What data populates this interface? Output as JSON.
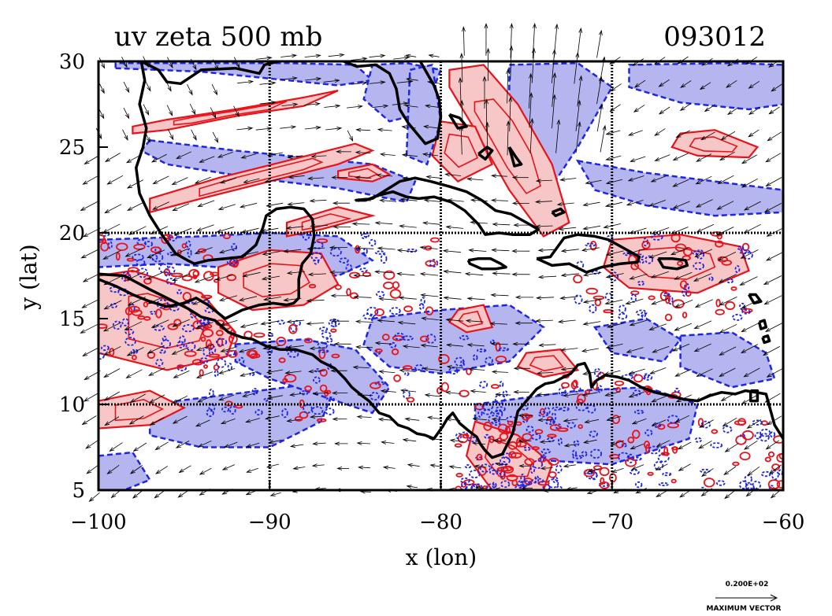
{
  "chart_data": {
    "type": "contour_vector_map",
    "title": "uv zeta 500 mb",
    "timestamp": "093012",
    "xlabel": "x (lon)",
    "ylabel": "y (lat)",
    "xlim": [
      -100,
      -60
    ],
    "ylim": [
      5,
      30
    ],
    "x_ticks": [
      -100,
      -90,
      -80,
      -70,
      -60
    ],
    "x_tick_labels": [
      "−100",
      "−90",
      "−80",
      "−70",
      "−60"
    ],
    "y_ticks": [
      5,
      10,
      15,
      20,
      25,
      30
    ],
    "y_tick_labels": [
      "5",
      "10",
      "15",
      "20",
      "25",
      "30"
    ],
    "grid": true,
    "grid_lines_x": [
      -90,
      -80,
      -70
    ],
    "grid_lines_y": [
      10,
      20
    ],
    "colors": {
      "positive_fill": "#f7c7c7",
      "positive_line": "#e8121a",
      "negative_fill": "#b5b5ef",
      "negative_line": "#1f26e0",
      "coast": "#000000",
      "vector": "#000000"
    },
    "vector_legend": {
      "magnitude": "0.200E+02",
      "label": "MAXIMUM VECTOR"
    },
    "positive_regions": [
      {
        "lon": [
          -98,
          -96,
          -92,
          -88,
          -86,
          -88,
          -92,
          -96,
          -98
        ],
        "lat": [
          26.2,
          26.6,
          27.2,
          27.9,
          28.3,
          27.4,
          26.8,
          26.0,
          25.8
        ]
      },
      {
        "lon": [
          -97,
          -93,
          -89,
          -85,
          -84,
          -86,
          -90,
          -94,
          -97
        ],
        "lat": [
          22.0,
          23.2,
          24.2,
          25.2,
          24.8,
          24.0,
          23.0,
          22.0,
          21.2
        ]
      },
      {
        "lon": [
          -86,
          -84,
          -83,
          -84,
          -86
        ],
        "lat": [
          23.6,
          24.0,
          23.4,
          23.0,
          23.2
        ]
      },
      {
        "lon": [
          -89,
          -86,
          -84,
          -87,
          -89
        ],
        "lat": [
          20.6,
          21.5,
          21.0,
          20.2,
          19.8
        ]
      },
      {
        "lon": [
          -79.5,
          -77.5,
          -75.5,
          -73.5,
          -72.5,
          -74,
          -76,
          -78,
          -79.5
        ],
        "lat": [
          29.5,
          29.8,
          27.5,
          24.0,
          20.6,
          19.8,
          22.5,
          26.0,
          28.5
        ]
      },
      {
        "lon": [
          -80,
          -78,
          -77,
          -79,
          -80.5
        ],
        "lat": [
          26.5,
          26.2,
          24.0,
          23.0,
          24.5
        ]
      },
      {
        "lon": [
          -66,
          -64,
          -61.5,
          -62,
          -65,
          -66.5
        ],
        "lat": [
          25.8,
          26.0,
          25.0,
          24.4,
          24.5,
          25.0
        ]
      },
      {
        "lon": [
          -100,
          -98,
          -94,
          -92,
          -92.5,
          -96,
          -100
        ],
        "lat": [
          17.5,
          17.8,
          16.5,
          14.2,
          12.8,
          12.0,
          13.0
        ]
      },
      {
        "lon": [
          -93,
          -90,
          -87,
          -86,
          -88,
          -91,
          -93
        ],
        "lat": [
          18.0,
          19.0,
          18.8,
          17.0,
          15.8,
          15.5,
          16.5
        ]
      },
      {
        "lon": [
          -100,
          -97,
          -95,
          -97,
          -100
        ],
        "lat": [
          10.2,
          10.8,
          9.8,
          8.8,
          8.6
        ]
      },
      {
        "lon": [
          -78,
          -75.5,
          -73.5,
          -74,
          -77,
          -78.5
        ],
        "lat": [
          9.0,
          8.2,
          6.5,
          5.0,
          5.0,
          7.0
        ]
      },
      {
        "lon": [
          -70,
          -66,
          -62.5,
          -62,
          -65,
          -69,
          -70.5
        ],
        "lat": [
          19.6,
          19.9,
          19.2,
          17.8,
          16.5,
          16.8,
          18.0
        ]
      },
      {
        "lon": [
          -75,
          -73,
          -72,
          -74,
          -75.5
        ],
        "lat": [
          13.0,
          13.2,
          12.0,
          11.6,
          12.2
        ]
      },
      {
        "lon": [
          -79,
          -77.5,
          -77,
          -78.5,
          -79.5
        ],
        "lat": [
          15.5,
          15.8,
          14.5,
          14.2,
          14.8
        ]
      }
    ],
    "negative_regions": [
      {
        "lon": [
          -99,
          -94,
          -90,
          -86,
          -84,
          -85,
          -89,
          -94,
          -99
        ],
        "lat": [
          29.6,
          29.4,
          29.0,
          28.6,
          28.9,
          29.8,
          29.9,
          29.9,
          29.9
        ]
      },
      {
        "lon": [
          -97,
          -92,
          -88,
          -84,
          -81.5,
          -82,
          -86,
          -91,
          -96,
          -97.5
        ],
        "lat": [
          25.4,
          24.8,
          24.4,
          24.0,
          23.0,
          21.8,
          22.6,
          23.2,
          24.0,
          24.8
        ]
      },
      {
        "lon": [
          -100,
          -94,
          -90,
          -86,
          -84,
          -86,
          -90,
          -96,
          -100
        ],
        "lat": [
          19.6,
          19.8,
          20.0,
          19.8,
          18.4,
          17.5,
          17.8,
          18.2,
          18.0
        ]
      },
      {
        "lon": [
          -84,
          -82,
          -80,
          -81,
          -83,
          -84.5
        ],
        "lat": [
          29.8,
          29.9,
          29.5,
          27.0,
          26.5,
          27.8
        ]
      },
      {
        "lon": [
          -81.8,
          -80.5,
          -80,
          -80.8,
          -82
        ],
        "lat": [
          29.5,
          29.8,
          26.5,
          24.0,
          24.5
        ]
      },
      {
        "lon": [
          -76,
          -72,
          -70,
          -72,
          -74,
          -76
        ],
        "lat": [
          29.8,
          29.9,
          28.5,
          25.0,
          22.0,
          24.0
        ]
      },
      {
        "lon": [
          -69,
          -63,
          -60,
          -60,
          -62,
          -66,
          -69
        ],
        "lat": [
          29.8,
          29.9,
          29.8,
          27.5,
          27.2,
          27.6,
          28.5
        ]
      },
      {
        "lon": [
          -72,
          -68,
          -64,
          -60,
          -60,
          -64,
          -68,
          -71
        ],
        "lat": [
          24.2,
          23.5,
          23.0,
          22.5,
          21.2,
          21.0,
          21.6,
          22.5
        ]
      },
      {
        "lon": [
          -84,
          -80,
          -76,
          -74,
          -76,
          -80,
          -83,
          -84.5
        ],
        "lat": [
          15.0,
          15.5,
          15.8,
          14.5,
          12.5,
          11.8,
          12.2,
          13.5
        ]
      },
      {
        "lon": [
          -97,
          -93,
          -89,
          -86,
          -87,
          -90,
          -94,
          -97
        ],
        "lat": [
          10.0,
          10.5,
          11.0,
          11.5,
          9.0,
          7.5,
          7.5,
          8.2
        ]
      },
      {
        "lon": [
          -92,
          -88,
          -85,
          -83,
          -84,
          -87,
          -90,
          -92
        ],
        "lat": [
          13.5,
          13.8,
          13.2,
          11.0,
          9.5,
          10.5,
          11.5,
          12.5
        ]
      },
      {
        "lon": [
          -78,
          -72,
          -68,
          -65,
          -65.5,
          -70,
          -75,
          -78
        ],
        "lat": [
          10.0,
          10.8,
          11.0,
          10.0,
          8.0,
          6.5,
          6.8,
          8.0
        ]
      },
      {
        "lon": [
          -71,
          -68,
          -66,
          -67,
          -70
        ],
        "lat": [
          14.5,
          15.0,
          13.8,
          12.5,
          13.0
        ]
      },
      {
        "lon": [
          -66,
          -63,
          -61,
          -60.5,
          -63,
          -66
        ],
        "lat": [
          14.0,
          14.2,
          13.0,
          11.5,
          11.0,
          12.2
        ]
      },
      {
        "lon": [
          -100,
          -98,
          -97,
          -98.5,
          -100
        ],
        "lat": [
          7.0,
          7.2,
          5.6,
          5.0,
          5.0
        ]
      }
    ],
    "vectors": {
      "lon0": -100,
      "lat0": 5,
      "dlon": 1.33,
      "dlat": 1.4,
      "scale_note": "wind components in m/s"
    },
    "coastline": [
      {
        "lon": [
          -97.5,
          -96.5,
          -96.0,
          -95.2,
          -94.0,
          -92.0,
          -90.6,
          -90.3,
          -89.5,
          -88.8,
          -87.5,
          -86.8,
          -86.2,
          -84.9,
          -83.8,
          -83.0,
          -82.6,
          -82.4,
          -81.9,
          -81.4,
          -80.9,
          -80.2,
          -80.0,
          -80.1,
          -80.4,
          -80.8,
          -81.2
        ],
        "lat": [
          30.0,
          29.5,
          28.8,
          28.7,
          29.5,
          29.6,
          29.3,
          29.8,
          30.0,
          30.2,
          30.3,
          30.3,
          30.2,
          29.7,
          29.8,
          29.3,
          28.4,
          27.2,
          26.4,
          25.8,
          25.2,
          25.5,
          26.8,
          27.8,
          28.6,
          29.3,
          30.0
        ]
      },
      {
        "lon": [
          -97.5,
          -97.3,
          -97.6,
          -97.2,
          -97.4,
          -97.8,
          -97.6,
          -97.0,
          -96.3,
          -95.5,
          -94.8,
          -94.4,
          -93.6,
          -92.6,
          -91.6,
          -90.8,
          -90.4,
          -90.2,
          -89.6,
          -88.8,
          -88.0,
          -87.5,
          -87.4,
          -87.6,
          -88.1,
          -88.3,
          -88.3,
          -88.6,
          -89.0,
          -89.8,
          -90.6,
          -91.6,
          -92.6,
          -93.6,
          -94.3,
          -95.0,
          -96.0,
          -97.0,
          -98.0,
          -99.0,
          -100.0
        ],
        "lat": [
          30.0,
          28.9,
          27.5,
          26.1,
          25.0,
          23.8,
          22.3,
          21.0,
          19.9,
          18.8,
          18.4,
          18.2,
          18.4,
          18.5,
          18.6,
          19.3,
          20.3,
          21.0,
          21.4,
          21.5,
          21.4,
          20.8,
          19.8,
          18.8,
          18.2,
          17.3,
          16.2,
          15.9,
          15.8,
          15.9,
          15.8,
          15.5,
          15.0,
          15.8,
          16.2,
          15.9,
          15.7,
          16.0,
          16.4,
          16.9,
          17.3
        ]
      },
      {
        "lon": [
          -100.0,
          -98.5,
          -97.0,
          -95.8,
          -94.8,
          -94.0,
          -93.2,
          -92.4,
          -91.6,
          -91.0,
          -90.2,
          -89.4,
          -88.5,
          -87.5,
          -87.0,
          -86.2,
          -85.6,
          -85.2,
          -84.6,
          -84.2,
          -83.6,
          -83.0,
          -82.5,
          -81.9,
          -81.4,
          -80.9,
          -80.4,
          -79.9,
          -79.6,
          -79.3,
          -78.9,
          -78.3,
          -77.9,
          -77.7,
          -77.4,
          -77.0,
          -76.4,
          -75.8,
          -75.5,
          -75.0,
          -74.4,
          -73.9,
          -73.4,
          -73.0,
          -72.4,
          -72.0,
          -71.6,
          -71.3,
          -71.2,
          -70.9,
          -70.4,
          -69.7,
          -69.0,
          -68.3,
          -67.5,
          -66.6,
          -65.8,
          -65.0,
          -64.3,
          -63.6,
          -62.8,
          -62.2,
          -61.6,
          -61.0,
          -60.5,
          -60.0
        ],
        "lat": [
          17.6,
          17.5,
          16.7,
          16.1,
          15.6,
          15.1,
          14.9,
          14.2,
          13.9,
          13.8,
          13.4,
          13.2,
          13.2,
          12.9,
          12.5,
          12.1,
          11.5,
          11.0,
          10.5,
          10.2,
          9.5,
          9.3,
          8.8,
          8.6,
          8.3,
          8.2,
          8.0,
          8.7,
          9.2,
          9.5,
          8.9,
          8.4,
          8.1,
          7.7,
          7.3,
          6.9,
          7.1,
          8.3,
          9.6,
          10.2,
          10.9,
          11.2,
          11.3,
          11.5,
          11.8,
          12.3,
          12.4,
          11.8,
          11.0,
          11.4,
          11.7,
          11.6,
          11.4,
          11.0,
          10.7,
          10.5,
          10.3,
          10.2,
          10.5,
          10.7,
          10.6,
          10.8,
          10.7,
          10.6,
          8.8,
          8.0
        ]
      },
      {
        "lon": [
          -85.0,
          -84.0,
          -83.2,
          -82.4,
          -81.5,
          -80.6,
          -79.5,
          -78.5,
          -77.6,
          -76.8,
          -75.9,
          -75.0,
          -74.3,
          -74.8,
          -75.8,
          -76.6,
          -77.4,
          -77.8,
          -78.6,
          -79.4,
          -80.4,
          -81.3,
          -82.0,
          -82.8,
          -83.6,
          -84.4,
          -85.0
        ],
        "lat": [
          21.9,
          22.0,
          22.5,
          23.0,
          23.2,
          23.0,
          22.7,
          22.4,
          21.9,
          21.3,
          21.1,
          20.6,
          20.2,
          19.9,
          19.9,
          20.0,
          19.9,
          20.5,
          21.3,
          21.8,
          22.1,
          22.0,
          22.1,
          22.4,
          22.2,
          21.9,
          21.9
        ]
      },
      {
        "lon": [
          -78.4,
          -77.8,
          -77.1,
          -76.5,
          -76.2,
          -76.8,
          -77.6,
          -78.3,
          -78.4
        ],
        "lat": [
          18.4,
          18.5,
          18.5,
          18.2,
          18.0,
          17.9,
          17.9,
          18.2,
          18.4
        ]
      },
      {
        "lon": [
          -74.4,
          -73.6,
          -72.8,
          -72.0,
          -71.0,
          -70.2,
          -69.3,
          -68.4,
          -68.5,
          -69.5,
          -70.6,
          -71.5,
          -72.5,
          -73.5,
          -74.4
        ],
        "lat": [
          18.5,
          18.6,
          19.7,
          19.9,
          19.8,
          19.6,
          19.1,
          18.6,
          18.3,
          18.2,
          18.0,
          17.7,
          18.2,
          18.1,
          18.5
        ]
      },
      {
        "lon": [
          -67.3,
          -66.5,
          -65.7,
          -65.6,
          -66.2,
          -67.0,
          -67.3
        ],
        "lat": [
          18.5,
          18.5,
          18.4,
          18.1,
          17.9,
          18.0,
          18.5
        ]
      },
      {
        "lon": [
          -79.5,
          -78.9,
          -78.5,
          -79.0,
          -79.5
        ],
        "lat": [
          26.9,
          26.7,
          26.2,
          26.1,
          26.9
        ]
      },
      {
        "lon": [
          -77.8,
          -77.3,
          -77.0,
          -77.4,
          -77.8
        ],
        "lat": [
          24.6,
          25.0,
          24.8,
          24.3,
          24.6
        ]
      },
      {
        "lon": [
          -76.0,
          -75.6,
          -75.3,
          -75.7,
          -76.0
        ],
        "lat": [
          25.0,
          24.4,
          24.0,
          23.9,
          25.0
        ]
      },
      {
        "lon": [
          -73.5,
          -73.0,
          -72.8,
          -73.3,
          -73.5
        ],
        "lat": [
          21.2,
          21.4,
          21.2,
          21.0,
          21.2
        ]
      },
      {
        "lon": [
          -62.0,
          -61.6,
          -61.3,
          -61.7,
          -62.0
        ],
        "lat": [
          16.4,
          16.4,
          16.0,
          15.9,
          16.4
        ]
      },
      {
        "lon": [
          -61.4,
          -61.1,
          -61.0,
          -61.3,
          -61.4
        ],
        "lat": [
          14.8,
          14.9,
          14.5,
          14.4,
          14.8
        ]
      },
      {
        "lon": [
          -61.2,
          -60.9,
          -60.8,
          -61.1,
          -61.2
        ],
        "lat": [
          13.9,
          14.0,
          13.7,
          13.6,
          13.9
        ]
      },
      {
        "lon": [
          -61.9,
          -61.5,
          -61.5,
          -61.9,
          -61.9
        ],
        "lat": [
          10.8,
          10.8,
          10.2,
          10.2,
          10.8
        ]
      }
    ]
  }
}
